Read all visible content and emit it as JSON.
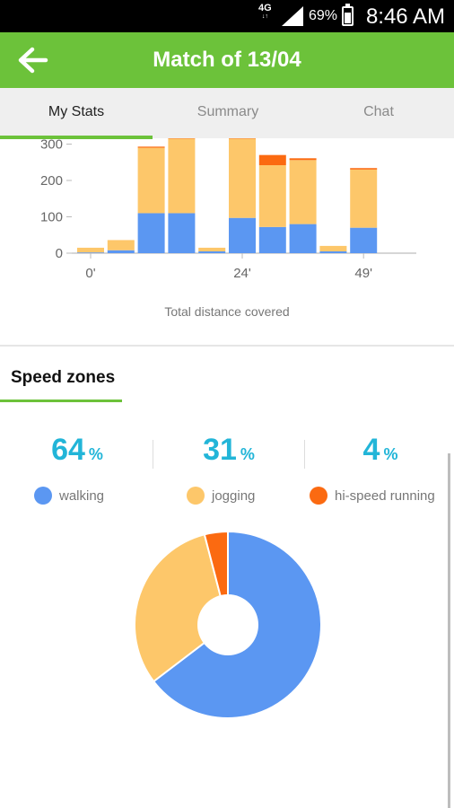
{
  "status_bar": {
    "network": "4G",
    "network_sub": "↓↑",
    "battery": "69%",
    "time": "8:46 AM"
  },
  "app_bar": {
    "title": "Match of 13/04",
    "back_icon": "arrow-left-icon"
  },
  "tabs": [
    {
      "label": "My Stats",
      "active": true
    },
    {
      "label": "Summary",
      "active": false
    },
    {
      "label": "Chat",
      "active": false
    }
  ],
  "distance_chart": {
    "caption": "Total distance covered"
  },
  "speed_zones": {
    "title": "Speed zones",
    "pct_symbol": "%",
    "stats": [
      {
        "value": "64",
        "label": "walking",
        "color": "#5b97f2"
      },
      {
        "value": "31",
        "label": "jogging",
        "color": "#fdc76a"
      },
      {
        "value": "4",
        "label": "hi-speed running",
        "color": "#fb6a11"
      }
    ]
  },
  "chart_data": [
    {
      "type": "bar",
      "stacked": true,
      "x_tick_labels": [
        "0'",
        "24'",
        "49'"
      ],
      "y_ticks": [
        0,
        100,
        200,
        300
      ],
      "xlabel": "Total distance covered",
      "ylim": [
        0,
        300
      ],
      "grid": false,
      "categories": [
        "1",
        "2",
        "3",
        "4",
        "5",
        "6",
        "7",
        "8",
        "9",
        "10",
        "11"
      ],
      "series": [
        {
          "name": "walking",
          "color": "#5b97f2",
          "values": [
            2,
            8,
            110,
            110,
            5,
            97,
            72,
            80,
            5,
            70,
            0
          ]
        },
        {
          "name": "jogging",
          "color": "#fdc76a",
          "values": [
            13,
            28,
            180,
            205,
            10,
            218,
            170,
            176,
            15,
            160,
            0
          ]
        },
        {
          "name": "hi-speed running",
          "color": "#fb6a11",
          "values": [
            0,
            0,
            3,
            5,
            0,
            5,
            28,
            5,
            0,
            4,
            0
          ]
        }
      ],
      "x_tick_positions": {
        "0'": 0,
        "24'": 5,
        "49'": 9
      }
    },
    {
      "type": "pie",
      "donut": true,
      "slices": [
        {
          "label": "walking",
          "value": 64,
          "color": "#5b97f2"
        },
        {
          "label": "jogging",
          "value": 31,
          "color": "#fdc76a"
        },
        {
          "label": "hi-speed running",
          "value": 4,
          "color": "#fb6a11"
        }
      ]
    }
  ]
}
